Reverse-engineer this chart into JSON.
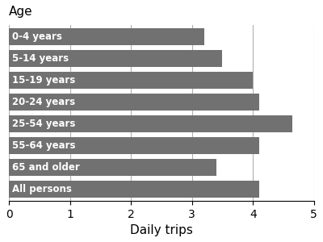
{
  "categories": [
    "0-4 years",
    "5-14 years",
    "15-19 years",
    "20-24 years",
    "25-54 years",
    "55-64 years",
    "65 and older",
    "All persons"
  ],
  "values": [
    3.2,
    3.5,
    4.0,
    4.1,
    4.65,
    4.1,
    3.4,
    4.1
  ],
  "bar_color": "#717171",
  "text_color": "#ffffff",
  "xlabel": "Daily trips",
  "ylabel": "Age",
  "xlim": [
    0,
    5
  ],
  "xticks": [
    0,
    1,
    2,
    3,
    4,
    5
  ],
  "background_color": "#ffffff",
  "bar_label_fontsize": 8.5,
  "xlabel_fontsize": 11,
  "tick_fontsize": 10,
  "ylabel_fontsize": 11,
  "grid_color": "#b0b0b0",
  "bar_height": 0.78
}
